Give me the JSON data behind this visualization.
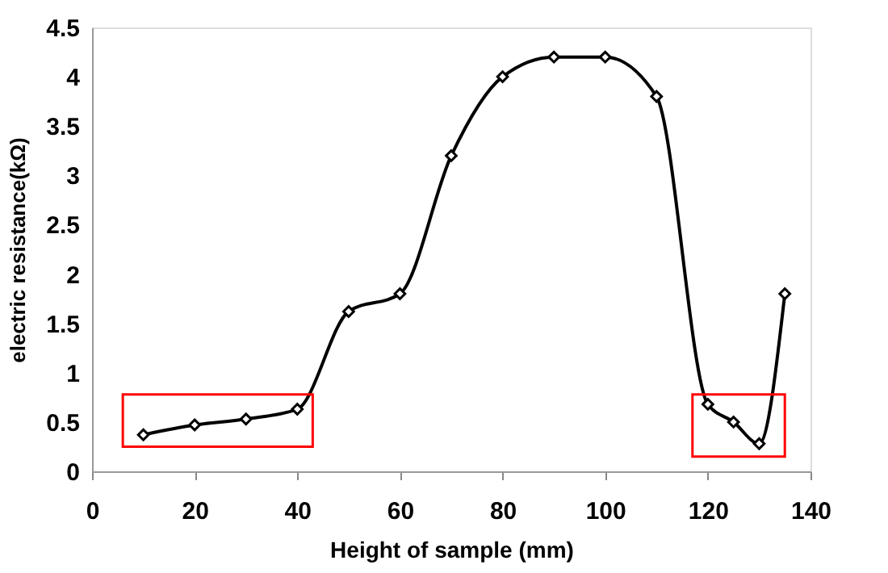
{
  "chart_data": {
    "type": "line",
    "xlabel": "Height of sample (mm)",
    "ylabel": "electric resistance(kΩ)",
    "x": [
      10,
      20,
      30,
      40,
      50,
      60,
      70,
      80,
      90,
      100,
      110,
      120,
      125,
      130,
      135
    ],
    "series": [
      {
        "color": "#000000",
        "values": [
          0.37,
          0.47,
          0.53,
          0.63,
          1.62,
          1.8,
          3.2,
          4.0,
          4.2,
          4.2,
          3.8,
          0.68,
          0.5,
          0.28,
          1.8
        ]
      }
    ],
    "xlim": [
      0,
      140
    ],
    "xticks": [
      0,
      20,
      40,
      60,
      80,
      100,
      120,
      140
    ],
    "ylim": [
      0,
      4.5
    ],
    "yticks": [
      0,
      0.5,
      1,
      1.5,
      2,
      2.5,
      3,
      3.5,
      4,
      4.5
    ],
    "marker": "diamond",
    "line_style": "solid",
    "grid": false
  }
}
